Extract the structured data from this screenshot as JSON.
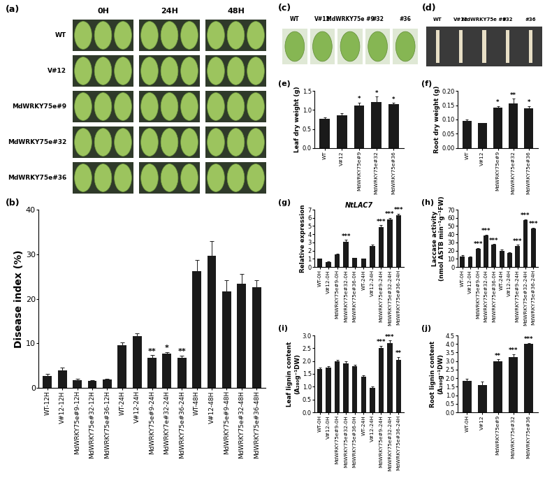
{
  "images": [
    {
      "panel_label": "(a)",
      "columns": [
        "0H",
        "24H",
        "48H"
      ],
      "rows": [
        "WT",
        "V#12",
        "MdWRKY75e#9",
        "MdWRKY75e#32",
        "MdWRKY75e#36"
      ]
    },
    {
      "panel_label": "(c)",
      "columns": [
        "WT",
        "V#12",
        "MdWRKY75e #9",
        "#32",
        "#36"
      ]
    },
    {
      "panel_label": "(d)",
      "columns": [
        "WT",
        "V#12",
        "MdWRKY75e #9",
        "#32",
        "#36"
      ]
    }
  ],
  "chart_data": [
    {
      "type": "bar",
      "panel_label": "(b)",
      "y_label": "Disease index (%)",
      "color": "#1a1a1a",
      "categories": [
        "WT-12H",
        "V#12-12H",
        "MdWRKY75e#9-12H",
        "MdWRKY75e#32-12H",
        "MdWRKY75e#36-12H",
        "WT-24H",
        "V#12-24H",
        "MdWRKY75e#9-24H",
        "MdWRKY7e#32-24H",
        "MdWRKY75e#36-24H",
        "WT-48H",
        "V#12-48H",
        "MdWRKY75e#9-48H",
        "MdWRKY75e#32-48H",
        "MdWRKY75e#36-48H"
      ],
      "values": [
        2.7,
        3.9,
        1.8,
        1.5,
        1.9,
        9.5,
        11.6,
        6.8,
        7.7,
        6.8,
        26.2,
        29.6,
        21.7,
        23.3,
        22.6
      ],
      "errors": [
        0.5,
        0.7,
        0.3,
        0.2,
        0.2,
        0.7,
        0.7,
        0.5,
        0.3,
        0.4,
        2.5,
        3.3,
        2.5,
        2.2,
        1.5
      ],
      "significance": [
        null,
        null,
        null,
        null,
        null,
        null,
        null,
        "**",
        "*",
        "**",
        null,
        null,
        null,
        null,
        null
      ],
      "ylim": [
        0,
        40
      ],
      "yticks": [
        0,
        10,
        20,
        30,
        40
      ]
    },
    {
      "type": "bar",
      "panel_label": "(e)",
      "y_label": "Leaf dry weight (g)",
      "color": "#1a1a1a",
      "categories": [
        "WT",
        "V#12",
        "MdWRKY75e#9",
        "MdWRKY75e#32",
        "MdWRKY75e#36"
      ],
      "values": [
        0.76,
        0.86,
        1.12,
        1.21,
        1.15
      ],
      "errors": [
        0.05,
        0.06,
        0.07,
        0.14,
        0.03
      ],
      "significance": [
        null,
        null,
        "*",
        "*",
        "*"
      ],
      "ylim": [
        0,
        1.5
      ],
      "yticks": [
        {
          "value": 0,
          "label": "0.0"
        },
        0.5,
        {
          "value": 1,
          "label": "1.0"
        },
        1.5
      ]
    },
    {
      "type": "bar",
      "panel_label": "(f)",
      "y_label": "Root dry weight (g)",
      "color": "#1a1a1a",
      "categories": [
        "WT",
        "V#12",
        "MdWRKY75e#9",
        "MdWRKY75e#32",
        "MdWRKY75e#36"
      ],
      "values": [
        0.095,
        0.087,
        0.142,
        0.157,
        0.14
      ],
      "errors": [
        0.004,
        0.002,
        0.005,
        0.015,
        0.006
      ],
      "significance": [
        null,
        null,
        "*",
        "**",
        "*"
      ],
      "ylim": [
        0,
        0.2
      ],
      "yticks": [
        {
          "value": 0,
          "label": "0.00"
        },
        0.05,
        {
          "value": 0.1,
          "label": "0.10"
        },
        0.15,
        {
          "value": 0.2,
          "label": "0.20"
        }
      ]
    },
    {
      "type": "bar",
      "panel_label": "(g)",
      "title": "NtLAC7",
      "y_label": "Relative expression",
      "color": "#1a1a1a",
      "categories": [
        "WT-0H",
        "V#12-0H",
        "MdWRKY75e#9-0H",
        "MdWRKY75e#32-0H",
        "MdWRKY75e#36-0H",
        "WT-24H",
        "V#12-24H",
        "MdWRKY75e#9-24H",
        "MdWRKY75e#32-24H",
        "MdWRKY75e#36-24H"
      ],
      "values": [
        1.0,
        0.6,
        1.5,
        3.1,
        1.1,
        1.0,
        2.6,
        4.9,
        5.8,
        6.3
      ],
      "errors": [
        0.05,
        0.05,
        0.1,
        0.2,
        0.05,
        0.05,
        0.1,
        0.2,
        0.2,
        0.2
      ],
      "significance": [
        null,
        null,
        null,
        "***",
        null,
        null,
        null,
        "***",
        "***",
        "***"
      ],
      "ylim": [
        0,
        7
      ],
      "yticks": [
        0,
        1,
        2,
        3,
        4,
        5,
        6,
        7
      ]
    },
    {
      "type": "bar",
      "panel_label": "(h)",
      "y_label": "Laccase activity\n(nmol ASTB min⁻¹g⁻¹FW)",
      "color": "#1a1a1a",
      "categories": [
        "WT-0H",
        "V#12-0H",
        "MdWRKY75e#9-0H",
        "MdWRKY75e#32-0H",
        "MdWRKY75e#36-0H",
        "WT-24H",
        "V#12-24H",
        "MdWRKY75e#9-24H",
        "MdWRKY75e#32-24H",
        "MdWRKY75e#36-24H"
      ],
      "values": [
        13,
        12,
        22,
        38,
        27,
        20,
        17,
        26,
        57,
        47
      ],
      "errors": [
        1.5,
        1,
        1,
        1.5,
        1,
        1,
        1,
        1,
        1,
        1
      ],
      "significance": [
        null,
        null,
        "***",
        "***",
        "***",
        null,
        null,
        "***",
        "***",
        "***"
      ],
      "ylim": [
        0,
        70
      ],
      "yticks": [
        0,
        10,
        20,
        30,
        40,
        50,
        60,
        70
      ]
    },
    {
      "type": "bar",
      "panel_label": "(i)",
      "y_label": "Leaf lignin content\n(A₂₈₀g⁻¹DW)",
      "color": "#1a1a1a",
      "categories": [
        "WT-0H",
        "V#12-0H",
        "MdWRKY75e#9-0H",
        "MdWRKY75e#32-0H",
        "MdWRKY75e#36-0H",
        "WT-24H",
        "V#12-24H",
        "MdWRKY75e#9-24H",
        "MdWRKY75e#32-24H",
        "MdWRKY75e#36-24H"
      ],
      "values": [
        1.7,
        1.75,
        2.0,
        1.9,
        1.8,
        1.4,
        0.95,
        2.5,
        2.7,
        2.05
      ],
      "errors": [
        0.05,
        0.05,
        0.05,
        0.08,
        0.05,
        0.05,
        0.05,
        0.1,
        0.1,
        0.1
      ],
      "significance": [
        null,
        null,
        null,
        null,
        null,
        null,
        null,
        "***",
        "***",
        "**"
      ],
      "ylim": [
        0,
        3.0
      ],
      "yticks": [
        {
          "value": 0,
          "label": "0.0"
        },
        0.5,
        {
          "value": 1,
          "label": "1.0"
        },
        1.5,
        {
          "value": 2,
          "label": "2.0"
        },
        2.5,
        {
          "value": 3,
          "label": "3.0"
        }
      ]
    },
    {
      "type": "bar",
      "panel_label": "(j)",
      "y_label": "Root lignin content\n(A₂₈₀g⁻¹DW)",
      "color": "#1a1a1a",
      "categories": [
        "WT-0H",
        "V#12",
        "MdWRKY75e#9",
        "MdWRKY75e#32",
        "MdWRKY75e#36"
      ],
      "values": [
        1.85,
        1.6,
        3.0,
        3.25,
        4.0
      ],
      "errors": [
        0.1,
        0.2,
        0.1,
        0.15,
        0.05
      ],
      "significance": [
        null,
        null,
        "**",
        "***",
        "***"
      ],
      "ylim": [
        0,
        4.5
      ],
      "yticks": [
        {
          "value": 0,
          "label": "0.0"
        },
        0.5,
        {
          "value": 1,
          "label": "1.0"
        },
        1.5,
        {
          "value": 2,
          "label": "2.0"
        },
        2.5,
        {
          "value": 3,
          "label": "3.0"
        },
        3.5,
        {
          "value": 4,
          "label": "4.0"
        },
        4.5
      ]
    }
  ]
}
